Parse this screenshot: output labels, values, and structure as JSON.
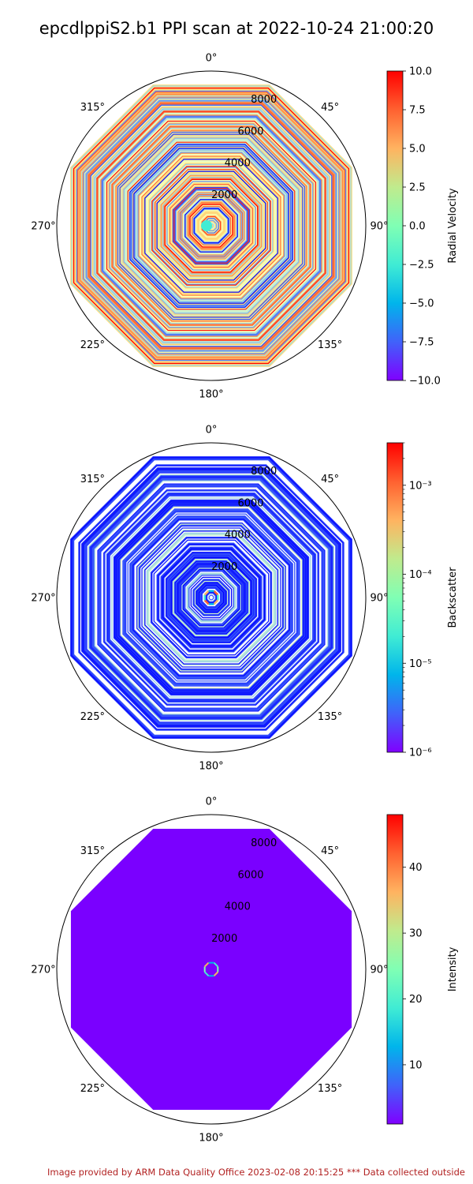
{
  "title": "epcdlppiS2.b1 PPI scan at 2022-10-24 21:00:20",
  "footer": "Image provided by ARM Data Quality Office 2023-02-08 20:15:25    *** Data collected outside",
  "chart_data": [
    {
      "type": "polar",
      "angle_ticks": [
        "0°",
        "45°",
        "90°",
        "135°",
        "180°",
        "225°",
        "270°",
        "315°"
      ],
      "radial_ticks": [
        "2000",
        "4000",
        "6000",
        "8000"
      ],
      "radial_values": [
        2000,
        4000,
        6000,
        8000
      ],
      "colorbar": {
        "label": "Radial Velocity",
        "scale": "linear",
        "range": [
          -10.0,
          10.0
        ],
        "ticks": [
          "10.0",
          "7.5",
          "5.0",
          "2.5",
          "0.0",
          "−2.5",
          "−5.0",
          "−7.5",
          "−10.0"
        ],
        "tick_values": [
          10,
          7.5,
          5,
          2.5,
          0,
          -2.5,
          -5,
          -7.5,
          -10
        ],
        "colormap": "rainbow"
      }
    },
    {
      "type": "polar",
      "angle_ticks": [
        "0°",
        "45°",
        "90°",
        "135°",
        "180°",
        "225°",
        "270°",
        "315°"
      ],
      "radial_ticks": [
        "2000",
        "4000",
        "6000",
        "8000"
      ],
      "radial_values": [
        2000,
        4000,
        6000,
        8000
      ],
      "colorbar": {
        "label": "Backscatter",
        "scale": "log",
        "range": [
          1e-06,
          0.003
        ],
        "ticks": [
          "10⁻³",
          "10⁻⁴",
          "10⁻⁵",
          "10⁻⁶"
        ],
        "tick_values": [
          0.001,
          0.0001,
          1e-05,
          1e-06
        ],
        "colormap": "rainbow"
      }
    },
    {
      "type": "polar",
      "angle_ticks": [
        "0°",
        "45°",
        "90°",
        "135°",
        "180°",
        "225°",
        "270°",
        "315°"
      ],
      "radial_ticks": [
        "2000",
        "4000",
        "6000",
        "8000"
      ],
      "radial_values": [
        2000,
        4000,
        6000,
        8000
      ],
      "colorbar": {
        "label": "Intensity",
        "scale": "linear",
        "range": [
          1,
          48
        ],
        "ticks": [
          "40",
          "30",
          "20",
          "10"
        ],
        "tick_values": [
          40,
          30,
          20,
          10
        ],
        "colormap": "rainbow"
      }
    }
  ]
}
